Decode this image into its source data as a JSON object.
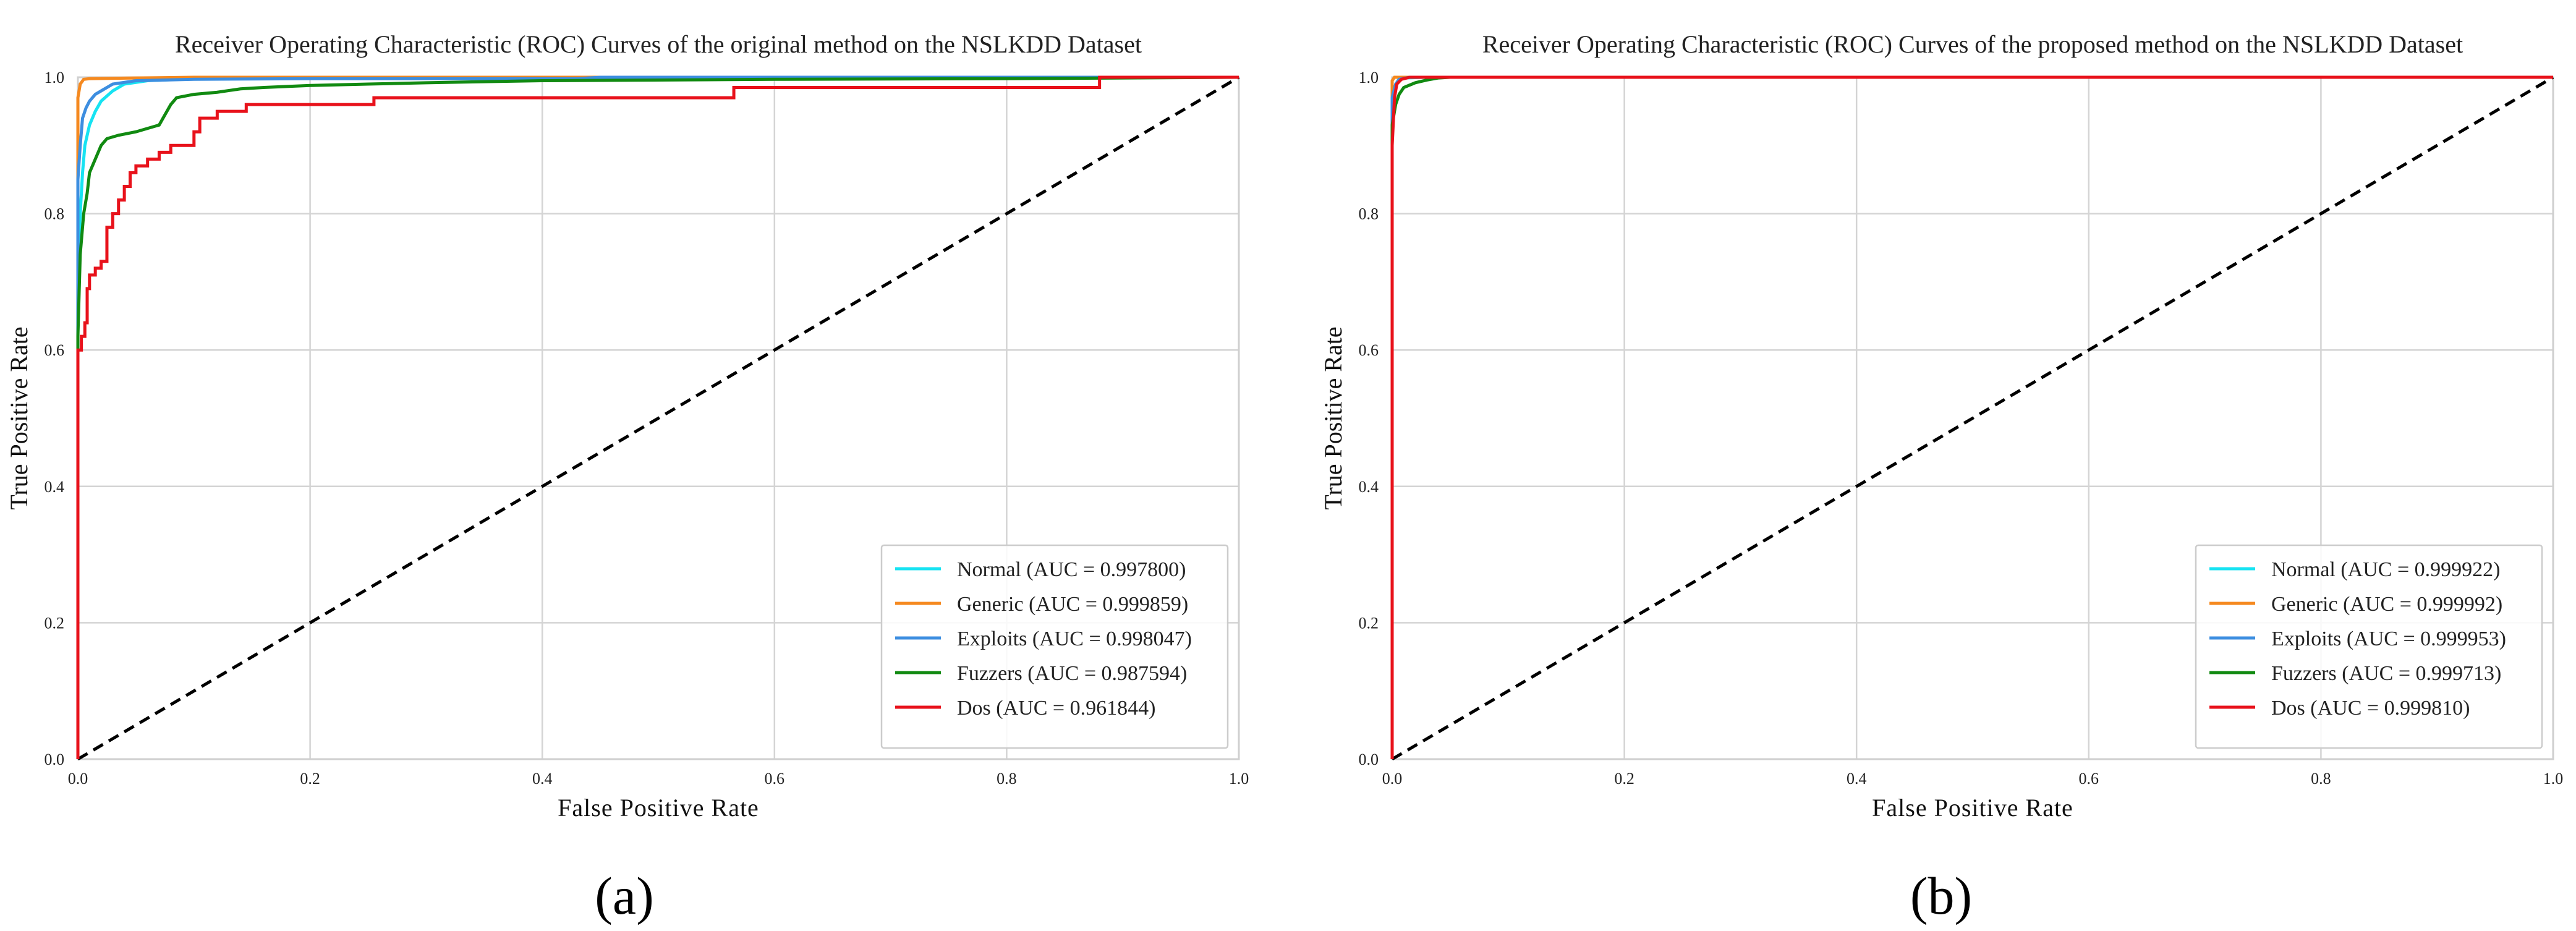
{
  "chart_data": [
    {
      "type": "line",
      "title": "Receiver Operating Characteristic (ROC) Curves of the original method on the NSLKDD Dataset",
      "xlabel": "False Positive Rate",
      "ylabel": "True Positive Rate",
      "xlim": [
        0,
        1
      ],
      "ylim": [
        0,
        1
      ],
      "xticks": [
        "0.0",
        "0.2",
        "0.4",
        "0.6",
        "0.8",
        "1.0"
      ],
      "yticks": [
        "0.0",
        "0.2",
        "0.4",
        "0.6",
        "0.8",
        "1.0"
      ],
      "grid": true,
      "legend_position": "lower-right",
      "panel_label": "(a)",
      "diagonal": {
        "style": "dashed",
        "color": "#000000",
        "points": [
          [
            0,
            0
          ],
          [
            1,
            1
          ]
        ]
      },
      "series": [
        {
          "name": "Normal (AUC = 0.997800)",
          "color": "#17e3f2",
          "points": [
            [
              0,
              0
            ],
            [
              0,
              0.72
            ],
            [
              0.002,
              0.8
            ],
            [
              0.004,
              0.86
            ],
            [
              0.006,
              0.9
            ],
            [
              0.01,
              0.93
            ],
            [
              0.015,
              0.95
            ],
            [
              0.02,
              0.965
            ],
            [
              0.03,
              0.98
            ],
            [
              0.04,
              0.99
            ],
            [
              0.06,
              0.995
            ],
            [
              0.1,
              0.998
            ],
            [
              0.2,
              0.999
            ],
            [
              0.5,
              1.0
            ],
            [
              1,
              1
            ]
          ]
        },
        {
          "name": "Generic (AUC = 0.999859)",
          "color": "#f5891f",
          "points": [
            [
              0,
              0
            ],
            [
              0,
              0.97
            ],
            [
              0.002,
              0.99
            ],
            [
              0.005,
              0.997
            ],
            [
              0.01,
              0.998
            ],
            [
              0.05,
              0.999
            ],
            [
              0.1,
              1.0
            ],
            [
              1,
              1
            ]
          ]
        },
        {
          "name": "Exploits (AUC = 0.998047)",
          "color": "#3d8ee0",
          "points": [
            [
              0,
              0
            ],
            [
              0,
              0.85
            ],
            [
              0.002,
              0.9
            ],
            [
              0.004,
              0.94
            ],
            [
              0.007,
              0.955
            ],
            [
              0.01,
              0.965
            ],
            [
              0.015,
              0.975
            ],
            [
              0.02,
              0.98
            ],
            [
              0.03,
              0.99
            ],
            [
              0.05,
              0.995
            ],
            [
              0.1,
              0.997
            ],
            [
              0.2,
              0.998
            ],
            [
              0.43,
              0.998
            ],
            [
              0.45,
              1.0
            ],
            [
              1,
              1
            ]
          ]
        },
        {
          "name": "Fuzzers (AUC = 0.987594)",
          "color": "#118a11",
          "points": [
            [
              0,
              0
            ],
            [
              0,
              0.62
            ],
            [
              0.002,
              0.74
            ],
            [
              0.005,
              0.8
            ],
            [
              0.008,
              0.83
            ],
            [
              0.01,
              0.86
            ],
            [
              0.015,
              0.88
            ],
            [
              0.02,
              0.9
            ],
            [
              0.025,
              0.91
            ],
            [
              0.035,
              0.915
            ],
            [
              0.05,
              0.92
            ],
            [
              0.07,
              0.93
            ],
            [
              0.075,
              0.945
            ],
            [
              0.08,
              0.96
            ],
            [
              0.085,
              0.97
            ],
            [
              0.1,
              0.975
            ],
            [
              0.12,
              0.978
            ],
            [
              0.14,
              0.983
            ],
            [
              0.16,
              0.985
            ],
            [
              0.2,
              0.988
            ],
            [
              0.25,
              0.99
            ],
            [
              0.3,
              0.992
            ],
            [
              0.4,
              0.995
            ],
            [
              0.6,
              0.997
            ],
            [
              0.8,
              0.998
            ],
            [
              1,
              1
            ]
          ]
        },
        {
          "name": "Dos (AUC = 0.961844)",
          "color": "#e8121b",
          "points": [
            [
              0,
              0
            ],
            [
              0,
              0.6
            ],
            [
              0.003,
              0.6
            ],
            [
              0.003,
              0.62
            ],
            [
              0.006,
              0.62
            ],
            [
              0.006,
              0.64
            ],
            [
              0.008,
              0.64
            ],
            [
              0.008,
              0.69
            ],
            [
              0.01,
              0.69
            ],
            [
              0.01,
              0.71
            ],
            [
              0.015,
              0.71
            ],
            [
              0.015,
              0.72
            ],
            [
              0.02,
              0.72
            ],
            [
              0.02,
              0.73
            ],
            [
              0.025,
              0.73
            ],
            [
              0.025,
              0.78
            ],
            [
              0.03,
              0.78
            ],
            [
              0.03,
              0.8
            ],
            [
              0.035,
              0.8
            ],
            [
              0.035,
              0.82
            ],
            [
              0.04,
              0.82
            ],
            [
              0.04,
              0.84
            ],
            [
              0.045,
              0.84
            ],
            [
              0.045,
              0.86
            ],
            [
              0.05,
              0.86
            ],
            [
              0.05,
              0.87
            ],
            [
              0.06,
              0.87
            ],
            [
              0.06,
              0.88
            ],
            [
              0.07,
              0.88
            ],
            [
              0.07,
              0.89
            ],
            [
              0.08,
              0.89
            ],
            [
              0.08,
              0.9
            ],
            [
              0.1,
              0.9
            ],
            [
              0.1,
              0.92
            ],
            [
              0.105,
              0.92
            ],
            [
              0.105,
              0.94
            ],
            [
              0.12,
              0.94
            ],
            [
              0.12,
              0.95
            ],
            [
              0.145,
              0.95
            ],
            [
              0.145,
              0.96
            ],
            [
              0.255,
              0.96
            ],
            [
              0.255,
              0.97
            ],
            [
              0.565,
              0.97
            ],
            [
              0.565,
              0.985
            ],
            [
              0.88,
              0.985
            ],
            [
              0.88,
              1.0
            ],
            [
              1,
              1
            ]
          ]
        }
      ]
    },
    {
      "type": "line",
      "title": "Receiver Operating Characteristic (ROC) Curves of the proposed method on the NSLKDD Dataset",
      "xlabel": "False Positive Rate",
      "ylabel": "True Positive Rate",
      "xlim": [
        0,
        1
      ],
      "ylim": [
        0,
        1
      ],
      "xticks": [
        "0.0",
        "0.2",
        "0.4",
        "0.6",
        "0.8",
        "1.0"
      ],
      "yticks": [
        "0.0",
        "0.2",
        "0.4",
        "0.6",
        "0.8",
        "1.0"
      ],
      "grid": true,
      "legend_position": "lower-right",
      "panel_label": "(b)",
      "diagonal": {
        "style": "dashed",
        "color": "#000000",
        "points": [
          [
            0,
            0
          ],
          [
            1,
            1
          ]
        ]
      },
      "series": [
        {
          "name": "Normal (AUC = 0.999922)",
          "color": "#17e3f2",
          "points": [
            [
              0,
              0
            ],
            [
              0,
              0.96
            ],
            [
              0.002,
              0.985
            ],
            [
              0.005,
              0.995
            ],
            [
              0.01,
              0.999
            ],
            [
              0.03,
              1.0
            ],
            [
              1,
              1
            ]
          ]
        },
        {
          "name": "Generic (AUC = 0.999992)",
          "color": "#f5891f",
          "points": [
            [
              0,
              0
            ],
            [
              0,
              0.995
            ],
            [
              0.002,
              1.0
            ],
            [
              1,
              1
            ]
          ]
        },
        {
          "name": "Exploits (AUC = 0.999953)",
          "color": "#3d8ee0",
          "points": [
            [
              0,
              0
            ],
            [
              0,
              0.97
            ],
            [
              0.003,
              0.99
            ],
            [
              0.006,
              0.997
            ],
            [
              0.015,
              1.0
            ],
            [
              1,
              1
            ]
          ]
        },
        {
          "name": "Fuzzers (AUC = 0.999713)",
          "color": "#118a11",
          "points": [
            [
              0,
              0
            ],
            [
              0,
              0.93
            ],
            [
              0.003,
              0.96
            ],
            [
              0.006,
              0.975
            ],
            [
              0.01,
              0.985
            ],
            [
              0.02,
              0.992
            ],
            [
              0.03,
              0.996
            ],
            [
              0.04,
              0.999
            ],
            [
              0.05,
              1.0
            ],
            [
              1,
              1
            ]
          ]
        },
        {
          "name": "Dos (AUC = 0.999810)",
          "color": "#e8121b",
          "points": [
            [
              0,
              0
            ],
            [
              0,
              0.9
            ],
            [
              0.002,
              0.97
            ],
            [
              0.004,
              0.99
            ],
            [
              0.008,
              0.997
            ],
            [
              0.015,
              1.0
            ],
            [
              1,
              1
            ]
          ]
        }
      ]
    }
  ]
}
